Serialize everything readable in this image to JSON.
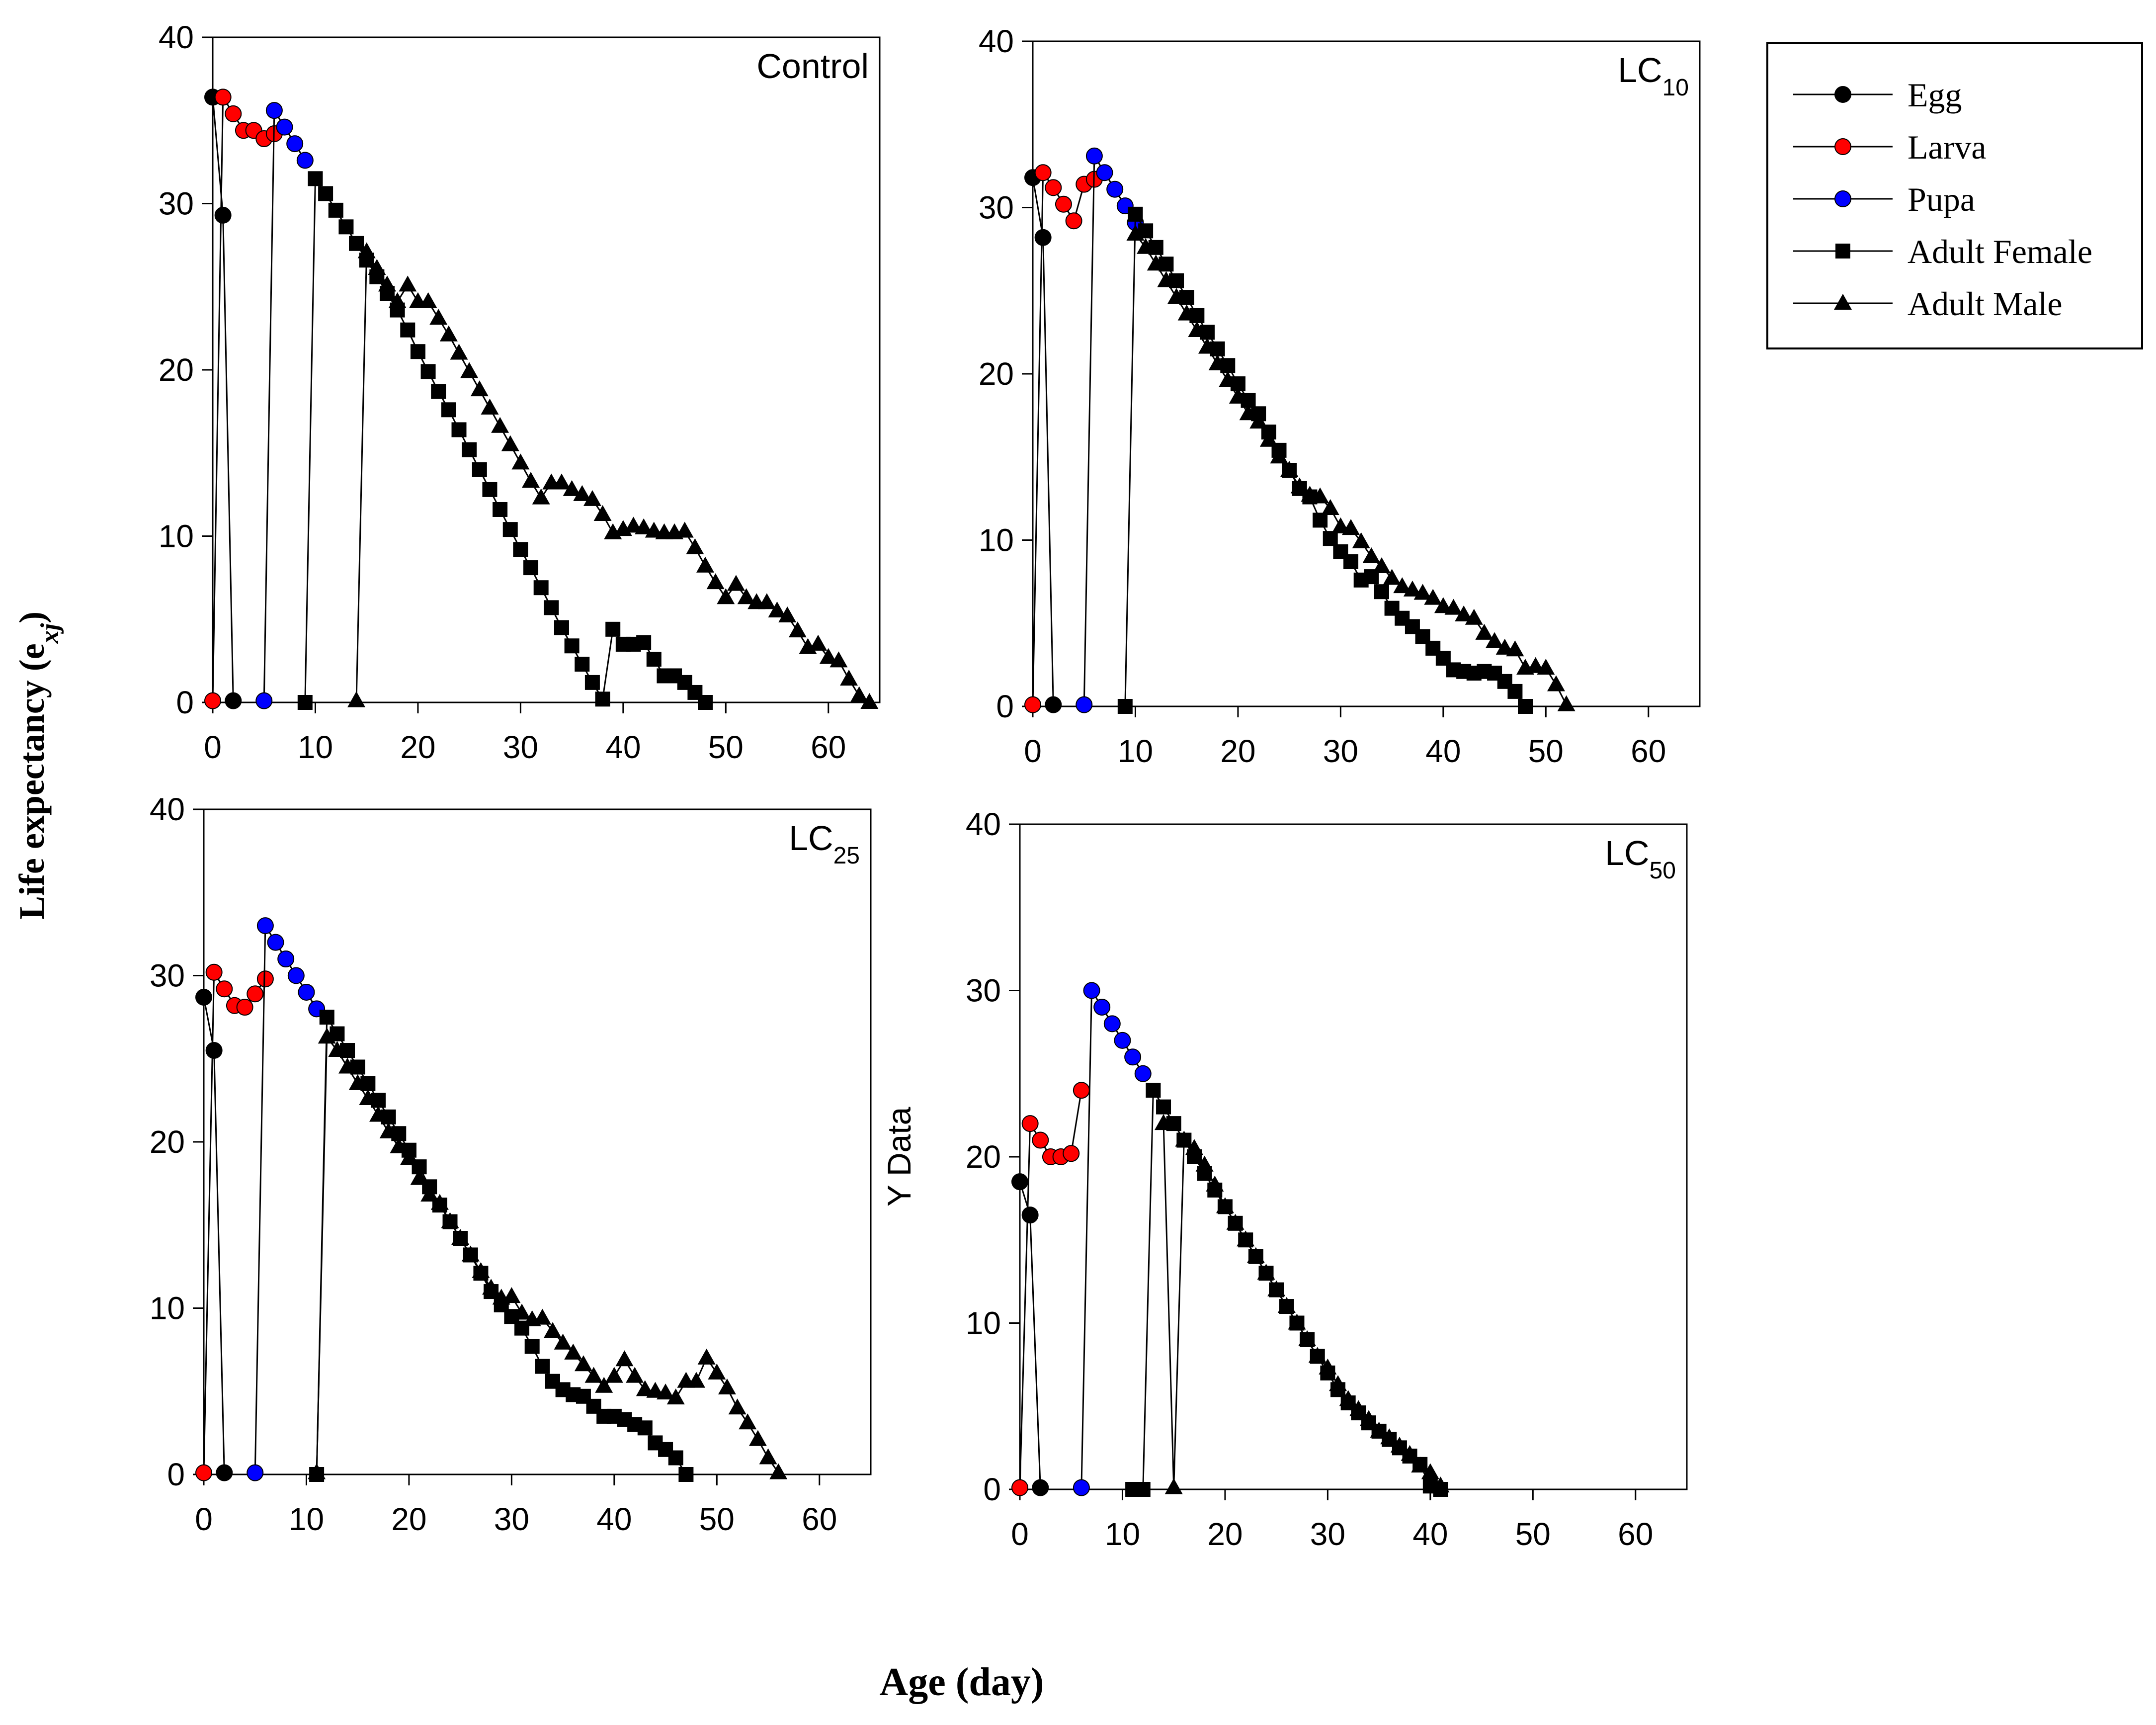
{
  "figure": {
    "y_axis_label": "Life expectancy (e",
    "y_axis_label_sub": "xj",
    "y_axis_label_close": ")",
    "x_axis_label": "Age (day)"
  },
  "legend": {
    "items": [
      {
        "label": "Egg",
        "marker": "circle",
        "color": "#000000"
      },
      {
        "label": "Larva",
        "marker": "circle",
        "color": "#ff0000"
      },
      {
        "label": "Pupa",
        "marker": "circle",
        "color": "#0000ff"
      },
      {
        "label": "Adult Female",
        "marker": "square",
        "color": "#000000"
      },
      {
        "label": "Adult Male",
        "marker": "triangle",
        "color": "#000000"
      }
    ]
  },
  "chart_data": [
    {
      "type": "line",
      "title": "Control",
      "title_sub": "",
      "ylabel": "",
      "xlim": [
        0,
        65
      ],
      "ylim": [
        0,
        40
      ],
      "xticks": [
        "0",
        "10",
        "20",
        "30",
        "40",
        "50",
        "60"
      ],
      "yticks": [
        "0",
        "10",
        "20",
        "30",
        "40"
      ],
      "series": [
        {
          "name": "Egg",
          "x": [
            0,
            1,
            2
          ],
          "y": [
            36.4,
            29.3,
            0.1
          ]
        },
        {
          "name": "Larva",
          "x": [
            0,
            1,
            2,
            3,
            4,
            5,
            6
          ],
          "y": [
            0.1,
            36.4,
            35.4,
            34.4,
            34.4,
            33.9,
            34.2
          ]
        },
        {
          "name": "Pupa",
          "x": [
            5,
            6,
            7,
            8,
            9
          ],
          "y": [
            0.1,
            35.6,
            34.6,
            33.6,
            32.6
          ]
        },
        {
          "name": "Adult Female",
          "x": [
            9,
            10,
            11,
            12,
            13,
            14,
            15,
            16,
            17,
            18,
            19,
            20,
            21,
            22,
            23,
            24,
            25,
            26,
            27,
            28,
            29,
            30,
            31,
            32,
            33,
            34,
            35,
            36,
            37,
            38,
            39,
            40,
            41,
            42,
            43,
            44,
            45,
            46,
            47,
            48
          ],
          "y": [
            0,
            31.5,
            30.6,
            29.6,
            28.6,
            27.6,
            26.6,
            25.6,
            24.6,
            23.6,
            22.4,
            21.1,
            19.9,
            18.7,
            17.6,
            16.4,
            15.2,
            14,
            12.8,
            11.6,
            10.4,
            9.2,
            8.1,
            6.9,
            5.7,
            4.5,
            3.4,
            2.3,
            1.2,
            0.2,
            4.4,
            3.5,
            3.5,
            3.6,
            2.6,
            1.6,
            1.6,
            1.2,
            0.6,
            0
          ]
        },
        {
          "name": "Adult Male",
          "x": [
            14,
            15,
            16,
            17,
            18,
            19,
            20,
            21,
            22,
            23,
            24,
            25,
            26,
            27,
            28,
            29,
            30,
            31,
            32,
            33,
            34,
            35,
            36,
            37,
            38,
            39,
            40,
            41,
            42,
            43,
            44,
            45,
            46,
            47,
            48,
            49,
            50,
            51,
            52,
            53,
            54,
            55,
            56,
            57,
            58,
            59,
            60,
            61,
            62,
            63,
            64
          ],
          "y": [
            0.1,
            27.1,
            26.1,
            25.1,
            24.1,
            25.1,
            24.1,
            24.1,
            23.1,
            22.1,
            21,
            19.9,
            18.8,
            17.7,
            16.6,
            15.5,
            14.4,
            13.3,
            12.3,
            13.2,
            13.2,
            12.8,
            12.5,
            12.2,
            11.3,
            10.2,
            10.4,
            10.6,
            10.5,
            10.3,
            10.2,
            10.2,
            10.3,
            9.3,
            8.2,
            7.2,
            6.3,
            7.1,
            6.3,
            6,
            6,
            5.5,
            5.2,
            4.3,
            3.3,
            3.5,
            2.7,
            2.5,
            1.4,
            0.4,
            0
          ]
        }
      ]
    },
    {
      "type": "line",
      "title": "LC",
      "title_sub": "10",
      "ylabel": "",
      "xlim": [
        0,
        65
      ],
      "ylim": [
        0,
        40
      ],
      "xticks": [
        "0",
        "10",
        "20",
        "30",
        "40",
        "50",
        "60"
      ],
      "yticks": [
        "0",
        "10",
        "20",
        "30",
        "40"
      ],
      "series": [
        {
          "name": "Egg",
          "x": [
            0,
            1,
            2
          ],
          "y": [
            31.8,
            28.2,
            0.1
          ]
        },
        {
          "name": "Larva",
          "x": [
            0,
            1,
            2,
            3,
            4,
            5,
            6
          ],
          "y": [
            0.1,
            32.1,
            31.2,
            30.2,
            29.2,
            31.4,
            31.7
          ]
        },
        {
          "name": "Pupa",
          "x": [
            5,
            6,
            7,
            8,
            9,
            10
          ],
          "y": [
            0.1,
            33.1,
            32.1,
            31.1,
            30.1,
            29.1
          ]
        },
        {
          "name": "Adult Female",
          "x": [
            9,
            10,
            11,
            12,
            13,
            14,
            15,
            16,
            17,
            18,
            19,
            20,
            21,
            22,
            23,
            24,
            25,
            26,
            27,
            28,
            29,
            30,
            31,
            32,
            33,
            34,
            35,
            36,
            37,
            38,
            39,
            40,
            41,
            42,
            43,
            44,
            45,
            46,
            47,
            48
          ],
          "y": [
            0,
            29.6,
            28.6,
            27.6,
            26.6,
            25.6,
            24.6,
            23.5,
            22.5,
            21.5,
            20.5,
            19.4,
            18.4,
            17.6,
            16.5,
            15.4,
            14.2,
            13.1,
            12.6,
            11.2,
            10.1,
            9.3,
            8.7,
            7.6,
            7.8,
            6.9,
            5.9,
            5.3,
            4.8,
            4.2,
            3.5,
            2.9,
            2.2,
            2.1,
            2,
            2.1,
            2,
            1.5,
            0.9,
            0
          ]
        },
        {
          "name": "Adult Male",
          "x": [
            10,
            11,
            12,
            13,
            14,
            15,
            16,
            17,
            18,
            19,
            20,
            21,
            22,
            23,
            24,
            25,
            26,
            27,
            28,
            29,
            30,
            31,
            32,
            33,
            34,
            35,
            36,
            37,
            38,
            39,
            40,
            41,
            42,
            43,
            44,
            45,
            46,
            47,
            48,
            49,
            50,
            51,
            52
          ],
          "y": [
            28.4,
            27.6,
            26.6,
            25.6,
            24.6,
            23.6,
            22.6,
            21.6,
            20.6,
            19.6,
            18.6,
            17.6,
            17.1,
            16,
            15,
            14.2,
            13.2,
            12.7,
            12.6,
            11.9,
            10.8,
            10.7,
            9.9,
            9,
            8.4,
            7.7,
            7.2,
            7,
            6.8,
            6.5,
            6,
            5.9,
            5.5,
            5.3,
            4.4,
            3.9,
            3.5,
            3.4,
            2.3,
            2.4,
            2.3,
            1.3,
            0.1
          ]
        }
      ]
    },
    {
      "type": "line",
      "title": "LC",
      "title_sub": "25",
      "ylabel": "",
      "xlim": [
        0,
        65
      ],
      "ylim": [
        0,
        40
      ],
      "xticks": [
        "0",
        "10",
        "20",
        "30",
        "40",
        "50",
        "60"
      ],
      "yticks": [
        "0",
        "10",
        "20",
        "30",
        "40"
      ],
      "series": [
        {
          "name": "Egg",
          "x": [
            0,
            1,
            2
          ],
          "y": [
            28.7,
            25.5,
            0.1
          ]
        },
        {
          "name": "Larva",
          "x": [
            0,
            1,
            2,
            3,
            4,
            5,
            6
          ],
          "y": [
            0.1,
            30.2,
            29.2,
            28.2,
            28.1,
            28.9,
            29.8
          ]
        },
        {
          "name": "Pupa",
          "x": [
            5,
            6,
            7,
            8,
            9,
            10,
            11
          ],
          "y": [
            0.1,
            33,
            32,
            31,
            30,
            29,
            28
          ]
        },
        {
          "name": "Adult Female",
          "x": [
            11,
            12,
            13,
            14,
            15,
            16,
            17,
            18,
            19,
            20,
            21,
            22,
            23,
            24,
            25,
            26,
            27,
            28,
            29,
            30,
            31,
            32,
            33,
            34,
            35,
            36,
            37,
            38,
            39,
            40,
            41,
            42,
            43,
            44,
            45,
            46,
            47
          ],
          "y": [
            0,
            27.5,
            26.5,
            25.5,
            24.5,
            23.5,
            22.5,
            21.5,
            20.5,
            19.5,
            18.5,
            17.3,
            16.2,
            15.2,
            14.2,
            13.2,
            12.1,
            11,
            10.2,
            9.5,
            8.8,
            7.7,
            6.5,
            5.6,
            5.1,
            4.8,
            4.7,
            4.1,
            3.5,
            3.5,
            3.3,
            3,
            2.8,
            1.9,
            1.5,
            1,
            0
          ]
        },
        {
          "name": "Adult Male",
          "x": [
            11,
            12,
            13,
            14,
            15,
            16,
            17,
            18,
            19,
            20,
            21,
            22,
            23,
            24,
            25,
            26,
            27,
            28,
            29,
            30,
            31,
            32,
            33,
            34,
            35,
            36,
            37,
            38,
            39,
            40,
            41,
            42,
            43,
            44,
            45,
            46,
            47,
            48,
            49,
            50,
            51,
            52,
            53,
            54,
            55,
            56
          ],
          "y": [
            0.1,
            26.3,
            25.5,
            24.5,
            23.5,
            22.6,
            21.6,
            20.6,
            19.7,
            19,
            17.8,
            16.8,
            16.3,
            15.2,
            14.2,
            13.2,
            12.2,
            11.2,
            10.6,
            10.7,
            9.7,
            9.3,
            9.4,
            8.6,
            7.9,
            7.3,
            6.6,
            5.9,
            5.3,
            5.9,
            6.9,
            5.9,
            5.1,
            5,
            4.9,
            4.6,
            5.6,
            5.6,
            7,
            6.1,
            5.2,
            4,
            3.1,
            2.1,
            1,
            0.1
          ]
        }
      ]
    },
    {
      "type": "line",
      "title": "LC",
      "title_sub": "50",
      "ylabel": "Y Data",
      "xlim": [
        0,
        65
      ],
      "ylim": [
        0,
        40
      ],
      "xticks": [
        "0",
        "10",
        "20",
        "30",
        "40",
        "50",
        "60"
      ],
      "yticks": [
        "0",
        "10",
        "20",
        "30",
        "40"
      ],
      "series": [
        {
          "name": "Egg",
          "x": [
            0,
            1,
            2
          ],
          "y": [
            18.5,
            16.5,
            0.1
          ]
        },
        {
          "name": "Larva",
          "x": [
            0,
            1,
            2,
            3,
            4,
            5,
            6
          ],
          "y": [
            0.1,
            22,
            21,
            20,
            20,
            20.2,
            24
          ]
        },
        {
          "name": "Pupa",
          "x": [
            6,
            7,
            8,
            9,
            10,
            11,
            12
          ],
          "y": [
            0.1,
            30,
            29,
            28,
            27,
            26,
            25
          ]
        },
        {
          "name": "Adult Female",
          "x": [
            11,
            12,
            13,
            14,
            15,
            16,
            17,
            18,
            19,
            20,
            21,
            22,
            23,
            24,
            25,
            26,
            27,
            28,
            29,
            30,
            31,
            32,
            33,
            34,
            35,
            36,
            37,
            38,
            39,
            40,
            41
          ],
          "y": [
            0,
            0,
            24,
            23,
            22,
            21,
            20,
            19,
            18,
            17,
            16,
            15,
            14,
            13,
            12,
            11,
            10,
            9,
            8,
            7,
            6,
            5.2,
            4.6,
            4,
            3.5,
            3,
            2.5,
            2,
            1.5,
            0.2,
            0
          ]
        },
        {
          "name": "Adult Male",
          "x": [
            14,
            15,
            16,
            17,
            18,
            19,
            20,
            21,
            22,
            23,
            24,
            25,
            26,
            27,
            28,
            29,
            30,
            31,
            32,
            33,
            34,
            35,
            36,
            37,
            38,
            39,
            40,
            41
          ],
          "y": [
            22,
            0.1,
            21,
            20.5,
            19.5,
            18.3,
            17,
            16,
            15,
            14,
            13,
            12,
            11,
            10,
            9,
            8,
            7.3,
            6.3,
            5.4,
            4.8,
            4.2,
            3.5,
            3.1,
            2.6,
            2.1,
            1.4,
            1,
            0.2
          ]
        }
      ]
    }
  ]
}
